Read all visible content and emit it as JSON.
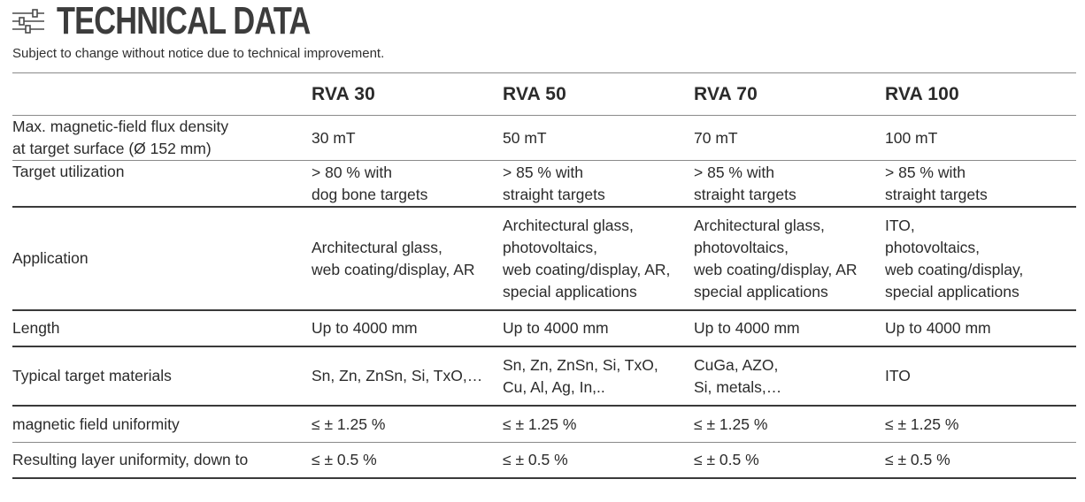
{
  "header": {
    "title": "TECHNICAL DATA",
    "subtitle": "Subject to change without notice due to technical improvement.",
    "icon": "sliders-icon"
  },
  "table": {
    "columns": [
      "",
      "RVA 30",
      "RVA 50",
      "RVA 70",
      "RVA 100"
    ],
    "rows": [
      {
        "label": [
          "Max. magnetic-field flux density",
          "at target surface (Ø 152 mm)"
        ],
        "cells": [
          [
            "30 mT"
          ],
          [
            "50 mT"
          ],
          [
            "70 mT"
          ],
          [
            "100 mT"
          ]
        ]
      },
      {
        "label": [
          "Target utilization"
        ],
        "cells": [
          [
            "> 80 % with",
            "dog bone targets"
          ],
          [
            "> 85 % with",
            "straight targets"
          ],
          [
            "> 85 % with",
            "straight targets"
          ],
          [
            "> 85 % with",
            "straight targets"
          ]
        ]
      },
      {
        "label": [
          "Application"
        ],
        "cells": [
          [
            "Architectural glass,",
            "web coating/display, AR"
          ],
          [
            "Architectural glass,",
            "photovoltaics,",
            "web coating/display, AR,",
            "special applications"
          ],
          [
            "Architectural glass,",
            "photovoltaics,",
            "web coating/display, AR",
            "special applications"
          ],
          [
            "ITO,",
            "photovoltaics,",
            "web coating/display,",
            "special applications"
          ]
        ]
      },
      {
        "label": [
          "Length"
        ],
        "cells": [
          [
            "Up to 4000 mm"
          ],
          [
            "Up to 4000 mm"
          ],
          [
            "Up to 4000 mm"
          ],
          [
            "Up to 4000 mm"
          ]
        ]
      },
      {
        "label": [
          "Typical target materials"
        ],
        "cells": [
          [
            "Sn, Zn, ZnSn, Si, TxO,…"
          ],
          [
            "Sn, Zn, ZnSn, Si, TxO,",
            "Cu, Al, Ag, In,.."
          ],
          [
            "CuGa, AZO,",
            "Si, metals,…"
          ],
          [
            "ITO"
          ]
        ]
      },
      {
        "label": [
          "magnetic field uniformity"
        ],
        "cells": [
          [
            "≤ ± 1.25 %"
          ],
          [
            "≤ ± 1.25 %"
          ],
          [
            "≤ ± 1.25 %"
          ],
          [
            "≤ ± 1.25 %"
          ]
        ]
      },
      {
        "label": [
          "Resulting layer uniformity, down to"
        ],
        "cells": [
          [
            "≤ ± 0.5 %"
          ],
          [
            "≤ ± 0.5 %"
          ],
          [
            "≤ ± 0.5 %"
          ],
          [
            "≤ ± 0.5 %"
          ]
        ]
      }
    ]
  }
}
